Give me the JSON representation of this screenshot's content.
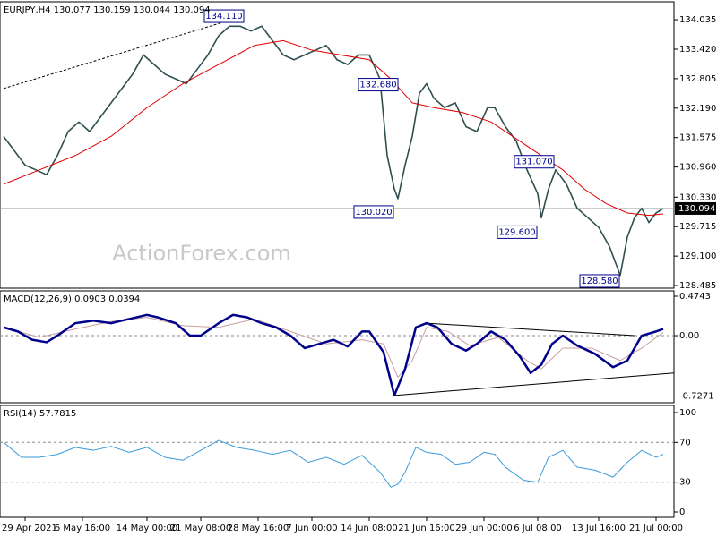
{
  "chart_data": [
    {
      "type": "line",
      "title": "EURJPY,H4 130.077 130.159 130.044 130.094",
      "watermark": "ActionForex.com",
      "ylim": [
        128.43,
        134.41
      ],
      "yticks": [
        134.035,
        {
          "value": 133.42,
          "label": "133.420"
        },
        132.805,
        {
          "value": 132.19,
          "label": "132.190"
        },
        131.575,
        {
          "value": 130.96,
          "label": "130.960"
        },
        {
          "value": 130.33,
          "label": "130.330"
        },
        129.715,
        {
          "value": 129.1,
          "label": "129.100"
        },
        128.485
      ],
      "last_value": {
        "value": 130.094,
        "label": "130.094"
      },
      "series": [
        {
          "name": "EURJPY",
          "color": "#2f4f4f",
          "x": [
            0,
            3,
            6,
            9,
            12,
            15,
            18,
            21,
            24,
            27,
            30,
            33,
            36,
            39,
            42,
            45,
            48,
            51,
            54,
            57,
            60,
            63,
            66,
            69,
            72,
            75,
            78,
            81,
            84,
            87,
            90,
            93,
            96,
            99,
            102,
            105,
            107,
            109,
            110,
            112,
            114,
            116,
            118,
            120,
            123,
            126,
            129,
            132,
            135,
            137,
            140,
            143,
            146,
            149,
            150,
            152,
            154,
            157,
            160,
            163,
            166,
            169,
            171,
            172,
            174,
            176,
            178,
            180,
            182,
            184
          ],
          "values": [
            131.6,
            131.3,
            131.0,
            130.9,
            130.8,
            131.2,
            131.7,
            131.9,
            131.7,
            132.0,
            132.3,
            132.6,
            132.9,
            133.3,
            133.1,
            132.9,
            132.8,
            132.7,
            133.0,
            133.3,
            133.7,
            133.9,
            133.9,
            133.8,
            133.9,
            133.6,
            133.3,
            133.2,
            133.3,
            133.4,
            133.5,
            133.2,
            133.1,
            133.3,
            133.3,
            132.8,
            131.2,
            130.5,
            130.3,
            131.0,
            131.6,
            132.5,
            132.7,
            132.4,
            132.2,
            132.3,
            131.8,
            131.7,
            132.2,
            132.2,
            131.8,
            131.5,
            130.9,
            130.4,
            129.9,
            130.5,
            130.9,
            130.6,
            130.1,
            129.9,
            129.7,
            129.3,
            128.9,
            128.7,
            129.5,
            129.9,
            130.1,
            129.8,
            130.0,
            130.094
          ]
        },
        {
          "name": "MA",
          "color": "#e00000",
          "x": [
            0,
            10,
            20,
            30,
            40,
            50,
            60,
            70,
            78,
            86,
            94,
            102,
            108,
            114,
            120,
            128,
            136,
            144,
            150,
            156,
            162,
            168,
            174,
            180,
            184
          ],
          "values": [
            130.6,
            130.9,
            131.2,
            131.6,
            132.2,
            132.7,
            133.1,
            133.5,
            133.6,
            133.4,
            133.3,
            133.2,
            132.8,
            132.3,
            132.2,
            132.1,
            131.9,
            131.5,
            131.2,
            130.9,
            130.5,
            130.2,
            130.0,
            129.95,
            129.98
          ]
        }
      ],
      "annotations": [
        {
          "x": 63,
          "value": 134.11,
          "label": "134.110"
        },
        {
          "x": 104,
          "value": 132.68,
          "label": "132.680"
        },
        {
          "x": 109,
          "value": 130.02,
          "label": "130.020"
        },
        {
          "x": 149,
          "value": 129.6,
          "label": "129.600"
        },
        {
          "x": 150,
          "value": 131.07,
          "label": "131.070"
        },
        {
          "x": 172,
          "value": 128.58,
          "label": "128.580"
        }
      ],
      "trendlines": [
        {
          "x": [
            0,
            62
          ],
          "values": [
            132.6,
            134.0
          ],
          "dashed": true
        }
      ]
    },
    {
      "type": "macd",
      "title": "MACD(12,26,9) 0.0903 0.0394",
      "ylim": [
        -0.808,
        0.539
      ],
      "yticks": [
        0.4743,
        {
          "value": 0,
          "label": "0.00"
        },
        -0.7271
      ],
      "series": [
        {
          "name": "Signal",
          "color": "#c8a0a0",
          "x": [
            0,
            10,
            20,
            30,
            40,
            50,
            60,
            70,
            80,
            90,
            100,
            106,
            110,
            114,
            118,
            124,
            130,
            138,
            146,
            150,
            156,
            164,
            172,
            178,
            184
          ],
          "values": [
            0.1,
            -0.02,
            0.08,
            0.17,
            0.22,
            0.12,
            0.1,
            0.2,
            0.05,
            -0.1,
            -0.05,
            -0.1,
            -0.5,
            -0.3,
            0.1,
            0.05,
            -0.12,
            -0.02,
            -0.3,
            -0.4,
            -0.15,
            -0.15,
            -0.3,
            -0.15,
            0.04
          ]
        },
        {
          "name": "MACD",
          "color": "#00008b",
          "x": [
            0,
            4,
            8,
            12,
            15,
            20,
            25,
            30,
            35,
            40,
            43,
            48,
            52,
            55,
            60,
            64,
            68,
            72,
            76,
            80,
            84,
            88,
            92,
            96,
            100,
            102,
            106,
            109,
            112,
            115,
            118,
            121,
            125,
            129,
            132,
            136,
            140,
            144,
            147,
            150,
            153,
            156,
            160,
            165,
            170,
            174,
            178,
            182,
            184
          ],
          "values": [
            0.1,
            0.05,
            -0.05,
            -0.08,
            0.0,
            0.15,
            0.18,
            0.15,
            0.2,
            0.25,
            0.22,
            0.15,
            0.0,
            0.0,
            0.15,
            0.25,
            0.22,
            0.15,
            0.1,
            0.0,
            -0.15,
            -0.1,
            -0.05,
            -0.13,
            0.05,
            0.05,
            -0.2,
            -0.72,
            -0.4,
            0.1,
            0.15,
            0.1,
            -0.1,
            -0.18,
            -0.1,
            0.05,
            -0.05,
            -0.25,
            -0.45,
            -0.35,
            -0.1,
            0.0,
            -0.12,
            -0.22,
            -0.38,
            -0.3,
            0.0,
            0.05,
            0.08
          ]
        }
      ],
      "trendlines": [
        {
          "x": [
            118,
            176
          ],
          "values": [
            0.15,
            0.0
          ]
        },
        {
          "x": [
            109,
            187
          ],
          "values": [
            -0.72,
            -0.45
          ]
        }
      ]
    },
    {
      "type": "rsi",
      "title": "RSI(14) 57.7815",
      "ylim": [
        -5.4,
        107.2
      ],
      "yticks": [
        100,
        70,
        30,
        0
      ],
      "levels": [
        70,
        30
      ],
      "xlim": [
        -1,
        187
      ],
      "xticks": [
        {
          "value": 6,
          "label": "29 Apr 2021"
        },
        {
          "value": 22,
          "label": "6 May 16:00"
        },
        {
          "value": 40,
          "label": "14 May 00:00"
        },
        {
          "value": 55,
          "label": "21 May 08:00"
        },
        {
          "value": 71,
          "label": "28 May 16:00"
        },
        {
          "value": 86,
          "label": "7 Jun 00:00"
        },
        {
          "value": 102,
          "label": "14 Jun 08:00"
        },
        {
          "value": 118,
          "label": "21 Jun 16:00"
        },
        {
          "value": 134,
          "label": "29 Jun 00:00"
        },
        {
          "value": 149,
          "label": "6 Jul 08:00"
        },
        {
          "value": 166,
          "label": "13 Jul 16:00"
        },
        {
          "value": 182,
          "label": "21 Jul 00:00"
        }
      ],
      "series": [
        {
          "name": "RSI",
          "color": "#3a9ad9",
          "x": [
            0,
            5,
            10,
            15,
            20,
            25,
            30,
            35,
            40,
            45,
            50,
            55,
            60,
            65,
            70,
            75,
            80,
            85,
            90,
            95,
            100,
            105,
            108,
            110,
            112,
            115,
            118,
            122,
            126,
            130,
            134,
            137,
            140,
            145,
            149,
            152,
            156,
            160,
            165,
            170,
            174,
            178,
            182,
            184
          ],
          "values": [
            70,
            55,
            55,
            58,
            65,
            62,
            66,
            60,
            65,
            55,
            52,
            62,
            72,
            65,
            62,
            58,
            62,
            50,
            55,
            48,
            57,
            40,
            25,
            28,
            40,
            65,
            60,
            58,
            48,
            50,
            60,
            58,
            45,
            32,
            30,
            55,
            62,
            45,
            42,
            35,
            50,
            62,
            55,
            58
          ]
        }
      ]
    }
  ]
}
